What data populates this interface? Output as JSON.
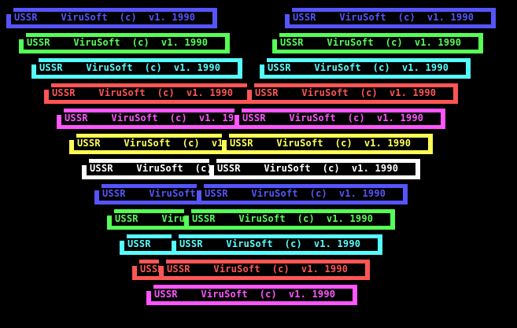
{
  "banner_text": {
    "org": "USSR",
    "product": "ViruSoft",
    "copyright": "(c)",
    "version": "v1. 1990"
  },
  "colors": {
    "blue": "#5555ff",
    "green": "#55ff55",
    "cyan": "#55ffff",
    "red": "#ff5555",
    "magenta": "#ff55ff",
    "yellow": "#ffff55",
    "white": "#ffffff"
  },
  "left_column": [
    "blue",
    "green",
    "cyan",
    "red",
    "magenta",
    "yellow",
    "white",
    "blue",
    "green",
    "cyan",
    "red"
  ],
  "right_column": [
    "blue",
    "green",
    "cyan",
    "red",
    "magenta",
    "yellow",
    "white",
    "blue",
    "green",
    "cyan",
    "red",
    "magenta"
  ]
}
